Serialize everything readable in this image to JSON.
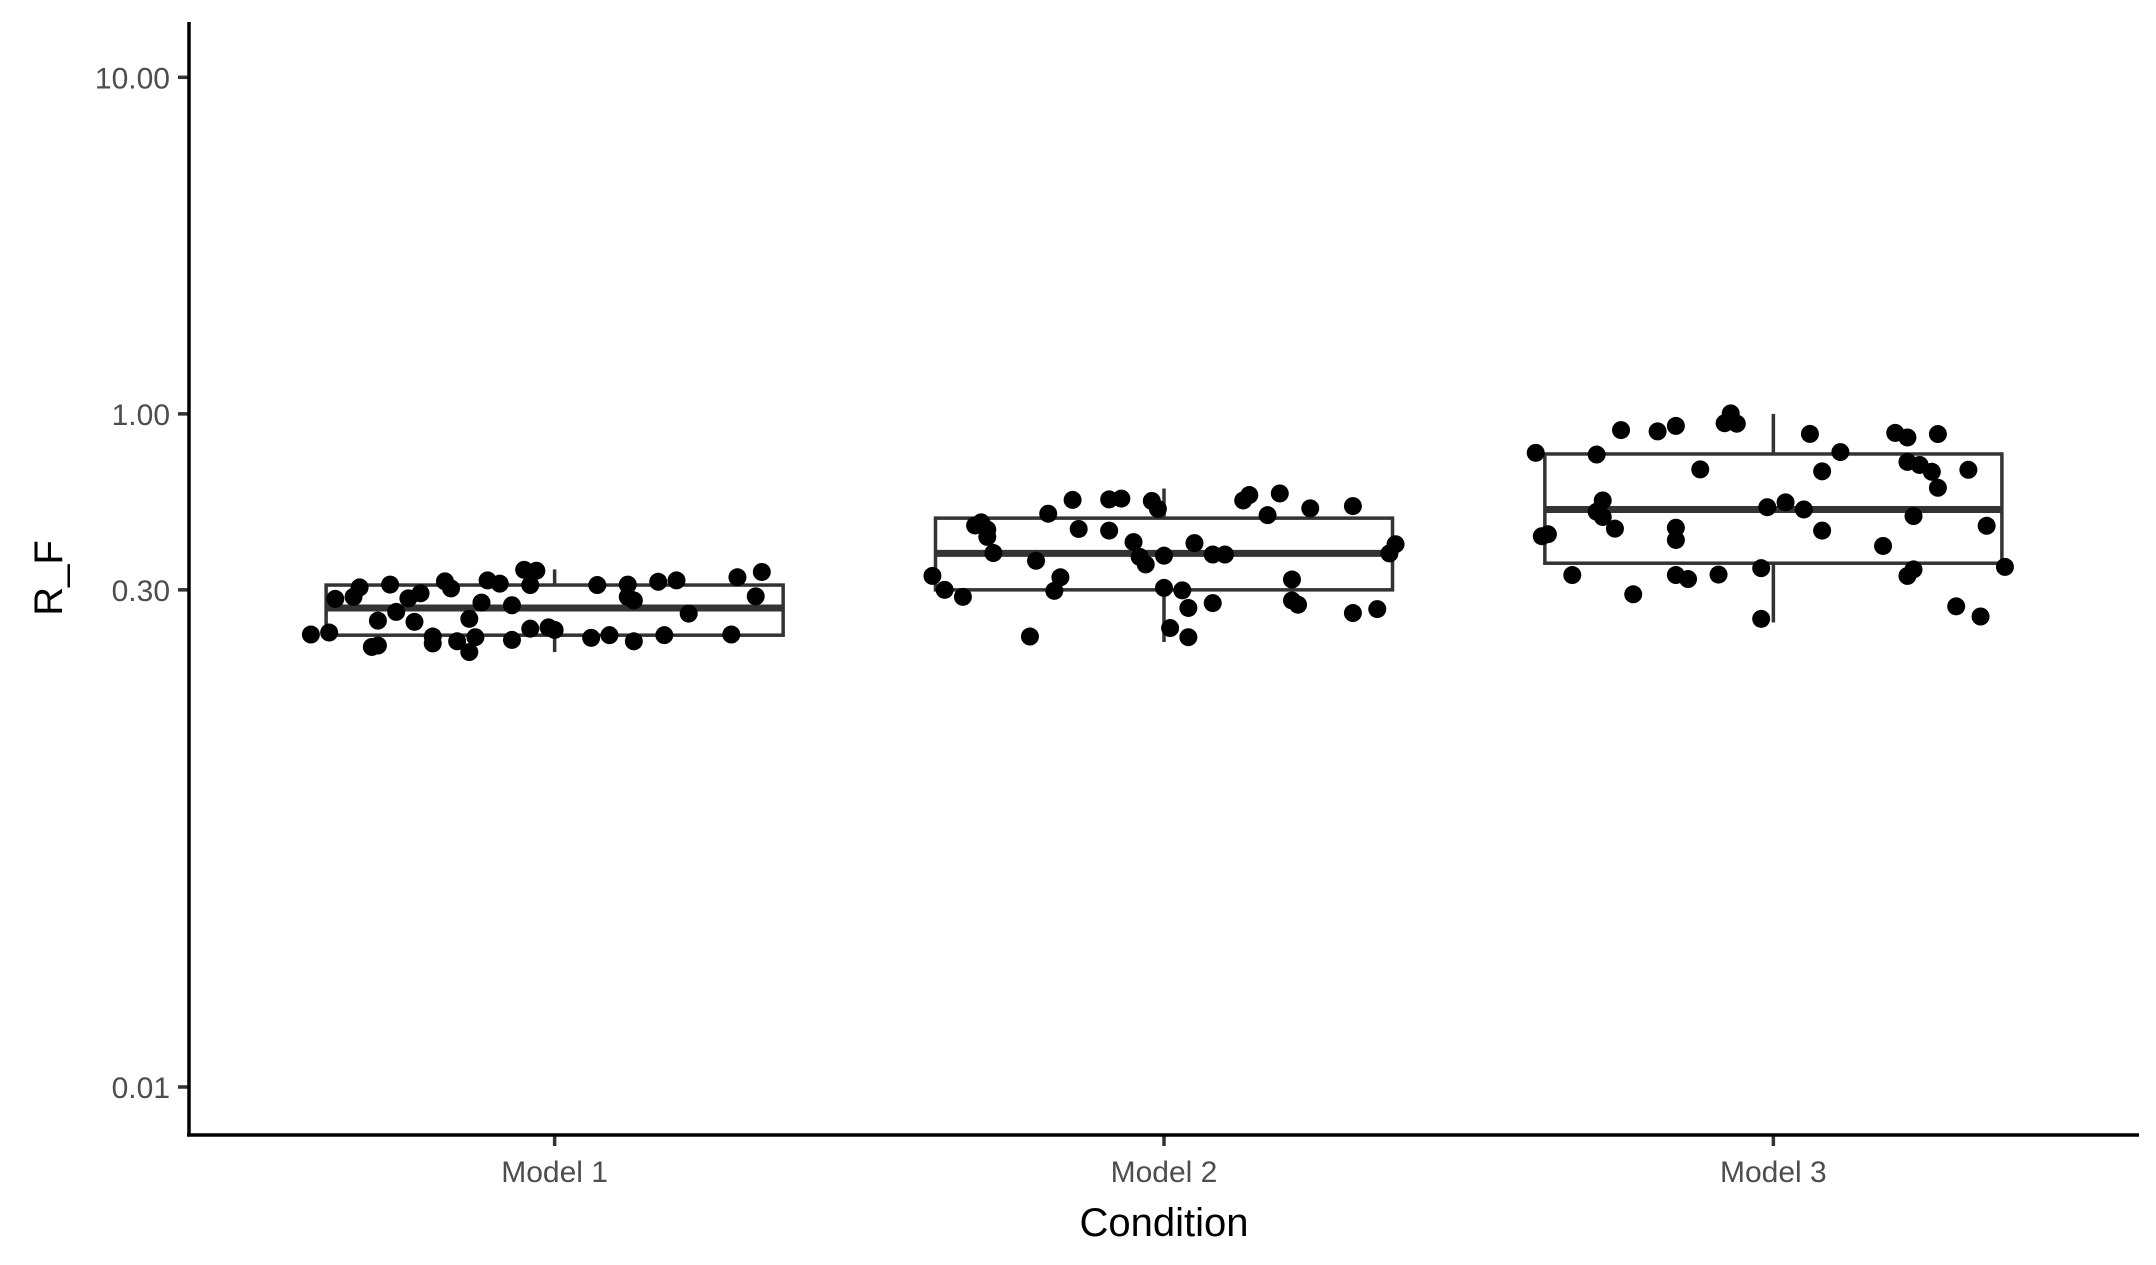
{
  "chart_data": {
    "type": "boxplot",
    "xlabel": "Condition",
    "ylabel": "R_F",
    "yscale": "log10",
    "ylim": [
      0.0072,
      14.6
    ],
    "yticks": [
      0.01,
      0.3,
      1.0,
      10.0
    ],
    "ytick_labels": [
      "0.01",
      "0.30",
      "1.00",
      "10.00"
    ],
    "categories": [
      "Model 1",
      "Model 2",
      "Model 3"
    ],
    "grid": false,
    "legend": "none",
    "colors": {
      "box_stroke": "#333333",
      "points": "#000000",
      "axis": "#000000",
      "tick_text": "#4d4d4d"
    },
    "boxes": [
      {
        "category": "Model 1",
        "whisker_low": 0.196,
        "q1": 0.22,
        "median": 0.265,
        "q3": 0.31,
        "whisker_high": 0.345
      },
      {
        "category": "Model 2",
        "whisker_low": 0.21,
        "q1": 0.3,
        "median": 0.385,
        "q3": 0.49,
        "whisker_high": 0.6
      },
      {
        "category": "Model 3",
        "whisker_low": 0.24,
        "q1": 0.36,
        "median": 0.52,
        "q3": 0.76,
        "whisker_high": 1.0
      }
    ],
    "points": [
      {
        "category": "Model 1",
        "jitter": -0.4,
        "y": 0.221
      },
      {
        "category": "Model 1",
        "jitter": -0.37,
        "y": 0.224
      },
      {
        "category": "Model 1",
        "jitter": -0.36,
        "y": 0.282
      },
      {
        "category": "Model 1",
        "jitter": -0.33,
        "y": 0.286
      },
      {
        "category": "Model 1",
        "jitter": -0.32,
        "y": 0.305
      },
      {
        "category": "Model 1",
        "jitter": -0.3,
        "y": 0.203
      },
      {
        "category": "Model 1",
        "jitter": -0.29,
        "y": 0.205
      },
      {
        "category": "Model 1",
        "jitter": -0.29,
        "y": 0.243
      },
      {
        "category": "Model 1",
        "jitter": -0.27,
        "y": 0.311
      },
      {
        "category": "Model 1",
        "jitter": -0.26,
        "y": 0.258
      },
      {
        "category": "Model 1",
        "jitter": -0.24,
        "y": 0.283
      },
      {
        "category": "Model 1",
        "jitter": -0.23,
        "y": 0.241
      },
      {
        "category": "Model 1",
        "jitter": -0.22,
        "y": 0.293
      },
      {
        "category": "Model 1",
        "jitter": -0.2,
        "y": 0.208
      },
      {
        "category": "Model 1",
        "jitter": -0.2,
        "y": 0.218
      },
      {
        "category": "Model 1",
        "jitter": -0.18,
        "y": 0.318
      },
      {
        "category": "Model 1",
        "jitter": -0.17,
        "y": 0.303
      },
      {
        "category": "Model 1",
        "jitter": -0.16,
        "y": 0.211
      },
      {
        "category": "Model 1",
        "jitter": -0.14,
        "y": 0.246
      },
      {
        "category": "Model 1",
        "jitter": -0.14,
        "y": 0.196
      },
      {
        "category": "Model 1",
        "jitter": -0.13,
        "y": 0.217
      },
      {
        "category": "Model 1",
        "jitter": -0.12,
        "y": 0.275
      },
      {
        "category": "Model 1",
        "jitter": -0.11,
        "y": 0.32
      },
      {
        "category": "Model 1",
        "jitter": -0.09,
        "y": 0.313
      },
      {
        "category": "Model 1",
        "jitter": -0.07,
        "y": 0.213
      },
      {
        "category": "Model 1",
        "jitter": -0.07,
        "y": 0.27
      },
      {
        "category": "Model 1",
        "jitter": -0.05,
        "y": 0.344
      },
      {
        "category": "Model 1",
        "jitter": -0.04,
        "y": 0.31
      },
      {
        "category": "Model 1",
        "jitter": -0.04,
        "y": 0.23
      },
      {
        "category": "Model 1",
        "jitter": -0.03,
        "y": 0.342
      },
      {
        "category": "Model 1",
        "jitter": -0.01,
        "y": 0.232
      },
      {
        "category": "Model 1",
        "jitter": 0.0,
        "y": 0.228
      },
      {
        "category": "Model 1",
        "jitter": 0.06,
        "y": 0.216
      },
      {
        "category": "Model 1",
        "jitter": 0.07,
        "y": 0.31
      },
      {
        "category": "Model 1",
        "jitter": 0.09,
        "y": 0.22
      },
      {
        "category": "Model 1",
        "jitter": 0.12,
        "y": 0.311
      },
      {
        "category": "Model 1",
        "jitter": 0.12,
        "y": 0.286
      },
      {
        "category": "Model 1",
        "jitter": 0.13,
        "y": 0.279
      },
      {
        "category": "Model 1",
        "jitter": 0.13,
        "y": 0.211
      },
      {
        "category": "Model 1",
        "jitter": 0.17,
        "y": 0.317
      },
      {
        "category": "Model 1",
        "jitter": 0.18,
        "y": 0.22
      },
      {
        "category": "Model 1",
        "jitter": 0.2,
        "y": 0.32
      },
      {
        "category": "Model 1",
        "jitter": 0.22,
        "y": 0.255
      },
      {
        "category": "Model 1",
        "jitter": 0.29,
        "y": 0.221
      },
      {
        "category": "Model 1",
        "jitter": 0.3,
        "y": 0.327
      },
      {
        "category": "Model 1",
        "jitter": 0.33,
        "y": 0.287
      },
      {
        "category": "Model 1",
        "jitter": 0.34,
        "y": 0.339
      },
      {
        "category": "Model 2",
        "jitter": -0.38,
        "y": 0.33
      },
      {
        "category": "Model 2",
        "jitter": -0.36,
        "y": 0.3
      },
      {
        "category": "Model 2",
        "jitter": -0.33,
        "y": 0.286
      },
      {
        "category": "Model 2",
        "jitter": -0.31,
        "y": 0.466
      },
      {
        "category": "Model 2",
        "jitter": -0.3,
        "y": 0.476
      },
      {
        "category": "Model 2",
        "jitter": -0.29,
        "y": 0.453
      },
      {
        "category": "Model 2",
        "jitter": -0.29,
        "y": 0.431
      },
      {
        "category": "Model 2",
        "jitter": -0.28,
        "y": 0.386
      },
      {
        "category": "Model 2",
        "jitter": -0.22,
        "y": 0.218
      },
      {
        "category": "Model 2",
        "jitter": -0.21,
        "y": 0.366
      },
      {
        "category": "Model 2",
        "jitter": -0.19,
        "y": 0.505
      },
      {
        "category": "Model 2",
        "jitter": -0.18,
        "y": 0.298
      },
      {
        "category": "Model 2",
        "jitter": -0.17,
        "y": 0.327
      },
      {
        "category": "Model 2",
        "jitter": -0.15,
        "y": 0.555
      },
      {
        "category": "Model 2",
        "jitter": -0.14,
        "y": 0.455
      },
      {
        "category": "Model 2",
        "jitter": -0.09,
        "y": 0.45
      },
      {
        "category": "Model 2",
        "jitter": -0.09,
        "y": 0.557
      },
      {
        "category": "Model 2",
        "jitter": -0.07,
        "y": 0.56
      },
      {
        "category": "Model 2",
        "jitter": -0.05,
        "y": 0.416
      },
      {
        "category": "Model 2",
        "jitter": -0.04,
        "y": 0.376
      },
      {
        "category": "Model 2",
        "jitter": -0.03,
        "y": 0.357
      },
      {
        "category": "Model 2",
        "jitter": -0.02,
        "y": 0.551
      },
      {
        "category": "Model 2",
        "jitter": -0.01,
        "y": 0.522
      },
      {
        "category": "Model 2",
        "jitter": 0.0,
        "y": 0.379
      },
      {
        "category": "Model 2",
        "jitter": 0.0,
        "y": 0.304
      },
      {
        "category": "Model 2",
        "jitter": 0.01,
        "y": 0.231
      },
      {
        "category": "Model 2",
        "jitter": 0.03,
        "y": 0.299
      },
      {
        "category": "Model 2",
        "jitter": 0.04,
        "y": 0.217
      },
      {
        "category": "Model 2",
        "jitter": 0.04,
        "y": 0.265
      },
      {
        "category": "Model 2",
        "jitter": 0.05,
        "y": 0.413
      },
      {
        "category": "Model 2",
        "jitter": 0.08,
        "y": 0.274
      },
      {
        "category": "Model 2",
        "jitter": 0.08,
        "y": 0.382
      },
      {
        "category": "Model 2",
        "jitter": 0.1,
        "y": 0.382
      },
      {
        "category": "Model 2",
        "jitter": 0.13,
        "y": 0.553
      },
      {
        "category": "Model 2",
        "jitter": 0.14,
        "y": 0.574
      },
      {
        "category": "Model 2",
        "jitter": 0.17,
        "y": 0.5
      },
      {
        "category": "Model 2",
        "jitter": 0.19,
        "y": 0.58
      },
      {
        "category": "Model 2",
        "jitter": 0.21,
        "y": 0.279
      },
      {
        "category": "Model 2",
        "jitter": 0.21,
        "y": 0.322
      },
      {
        "category": "Model 2",
        "jitter": 0.22,
        "y": 0.271
      },
      {
        "category": "Model 2",
        "jitter": 0.24,
        "y": 0.524
      },
      {
        "category": "Model 2",
        "jitter": 0.31,
        "y": 0.532
      },
      {
        "category": "Model 2",
        "jitter": 0.31,
        "y": 0.256
      },
      {
        "category": "Model 2",
        "jitter": 0.35,
        "y": 0.263
      },
      {
        "category": "Model 2",
        "jitter": 0.37,
        "y": 0.385
      },
      {
        "category": "Model 2",
        "jitter": 0.38,
        "y": 0.41
      },
      {
        "category": "Model 3",
        "jitter": -0.39,
        "y": 0.766
      },
      {
        "category": "Model 3",
        "jitter": -0.38,
        "y": 0.433
      },
      {
        "category": "Model 3",
        "jitter": -0.37,
        "y": 0.439
      },
      {
        "category": "Model 3",
        "jitter": -0.33,
        "y": 0.332
      },
      {
        "category": "Model 3",
        "jitter": -0.29,
        "y": 0.757
      },
      {
        "category": "Model 3",
        "jitter": -0.29,
        "y": 0.512
      },
      {
        "category": "Model 3",
        "jitter": -0.28,
        "y": 0.494
      },
      {
        "category": "Model 3",
        "jitter": -0.28,
        "y": 0.553
      },
      {
        "category": "Model 3",
        "jitter": -0.26,
        "y": 0.456
      },
      {
        "category": "Model 3",
        "jitter": -0.25,
        "y": 0.895
      },
      {
        "category": "Model 3",
        "jitter": -0.23,
        "y": 0.291
      },
      {
        "category": "Model 3",
        "jitter": -0.19,
        "y": 0.887
      },
      {
        "category": "Model 3",
        "jitter": -0.16,
        "y": 0.921
      },
      {
        "category": "Model 3",
        "jitter": -0.16,
        "y": 0.422
      },
      {
        "category": "Model 3",
        "jitter": -0.16,
        "y": 0.459
      },
      {
        "category": "Model 3",
        "jitter": -0.16,
        "y": 0.332
      },
      {
        "category": "Model 3",
        "jitter": -0.14,
        "y": 0.323
      },
      {
        "category": "Model 3",
        "jitter": -0.12,
        "y": 0.684
      },
      {
        "category": "Model 3",
        "jitter": -0.09,
        "y": 0.333
      },
      {
        "category": "Model 3",
        "jitter": -0.08,
        "y": 0.938
      },
      {
        "category": "Model 3",
        "jitter": -0.07,
        "y": 1.003
      },
      {
        "category": "Model 3",
        "jitter": -0.06,
        "y": 0.935
      },
      {
        "category": "Model 3",
        "jitter": -0.02,
        "y": 0.348
      },
      {
        "category": "Model 3",
        "jitter": -0.02,
        "y": 0.246
      },
      {
        "category": "Model 3",
        "jitter": -0.01,
        "y": 0.528
      },
      {
        "category": "Model 3",
        "jitter": 0.02,
        "y": 0.546
      },
      {
        "category": "Model 3",
        "jitter": 0.05,
        "y": 0.52
      },
      {
        "category": "Model 3",
        "jitter": 0.06,
        "y": 0.872
      },
      {
        "category": "Model 3",
        "jitter": 0.08,
        "y": 0.45
      },
      {
        "category": "Model 3",
        "jitter": 0.08,
        "y": 0.675
      },
      {
        "category": "Model 3",
        "jitter": 0.11,
        "y": 0.77
      },
      {
        "category": "Model 3",
        "jitter": 0.18,
        "y": 0.405
      },
      {
        "category": "Model 3",
        "jitter": 0.2,
        "y": 0.878
      },
      {
        "category": "Model 3",
        "jitter": 0.22,
        "y": 0.851
      },
      {
        "category": "Model 3",
        "jitter": 0.22,
        "y": 0.72
      },
      {
        "category": "Model 3",
        "jitter": 0.22,
        "y": 0.33
      },
      {
        "category": "Model 3",
        "jitter": 0.23,
        "y": 0.497
      },
      {
        "category": "Model 3",
        "jitter": 0.23,
        "y": 0.345
      },
      {
        "category": "Model 3",
        "jitter": 0.24,
        "y": 0.705
      },
      {
        "category": "Model 3",
        "jitter": 0.26,
        "y": 0.673
      },
      {
        "category": "Model 3",
        "jitter": 0.27,
        "y": 0.871
      },
      {
        "category": "Model 3",
        "jitter": 0.27,
        "y": 0.603
      },
      {
        "category": "Model 3",
        "jitter": 0.3,
        "y": 0.268
      },
      {
        "category": "Model 3",
        "jitter": 0.32,
        "y": 0.682
      },
      {
        "category": "Model 3",
        "jitter": 0.34,
        "y": 0.25
      },
      {
        "category": "Model 3",
        "jitter": 0.35,
        "y": 0.465
      },
      {
        "category": "Model 3",
        "jitter": 0.38,
        "y": 0.351
      }
    ]
  }
}
